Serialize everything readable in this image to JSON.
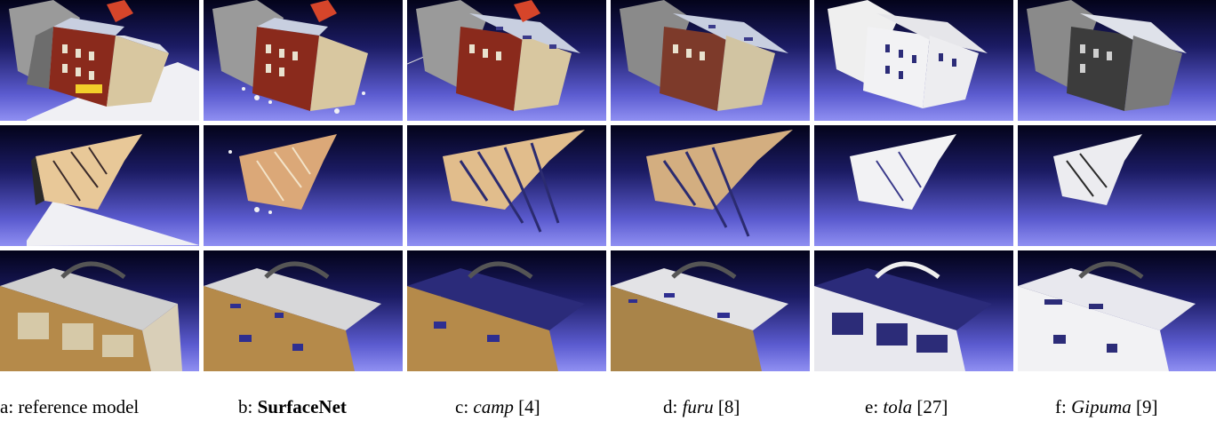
{
  "figure": {
    "rows": [
      "building",
      "bird-sculpture",
      "radio-box"
    ],
    "columns": [
      {
        "prefix": "a: ",
        "method": "reference model",
        "style": "plain",
        "cite": ""
      },
      {
        "prefix": "b: ",
        "method": "SurfaceNet",
        "style": "bold",
        "cite": ""
      },
      {
        "prefix": "c: ",
        "method": "camp",
        "style": "italic",
        "cite": " [4]"
      },
      {
        "prefix": "d: ",
        "method": "furu",
        "style": "italic",
        "cite": " [8]"
      },
      {
        "prefix": "e: ",
        "method": "tola",
        "style": "italic",
        "cite": " [27]"
      },
      {
        "prefix": "f: ",
        "method": "Gipuma",
        "style": "italic",
        "cite": " [9]"
      }
    ]
  },
  "colors": {
    "bg_top": "#03031a",
    "bg_bottom": "#8f8ff2",
    "brick": "#8a2a1c",
    "roof": "#c8cfe0",
    "wood": "#d9b07a",
    "box": "#b58a4a",
    "white_recon": "#f2f2f4",
    "gray_recon": "#8a8a8a"
  }
}
